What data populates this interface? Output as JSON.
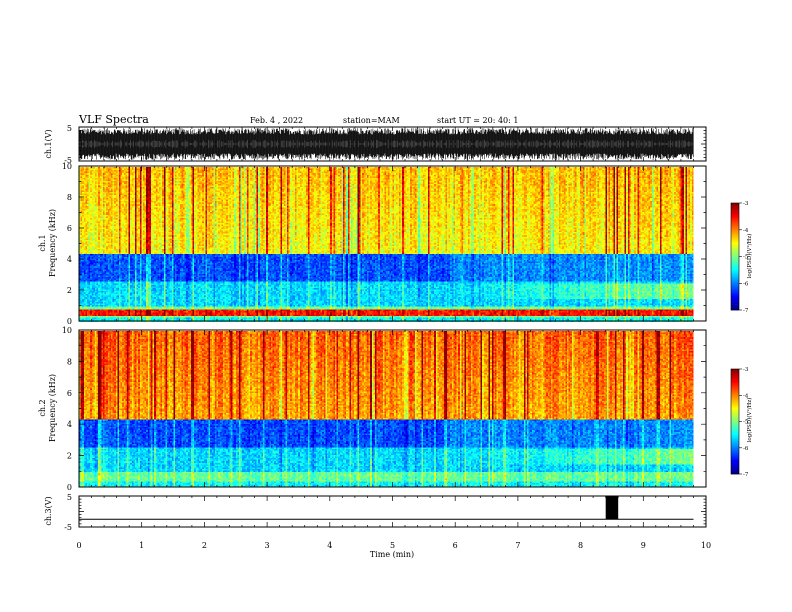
{
  "header": {
    "title": "VLF Spectra",
    "date": "Feb. 4 , 2022",
    "station": "station=MAM",
    "start": "start UT =  20: 40: 1"
  },
  "chart_data": [
    {
      "type": "line",
      "panel": "ch1-waveform",
      "ylabel": "ch.1(V)",
      "ylim": [
        -5,
        5
      ],
      "yticks": [
        "5",
        "-5"
      ],
      "xlim": [
        0,
        10
      ],
      "data_extent_min": 9.8,
      "description_values": "dense oscillating waveform filling roughly -4.5 to 4.5 V"
    },
    {
      "type": "heatmap",
      "panel": "ch1-spectrogram",
      "ylabel": "ch.1\nFrequency (kHz)",
      "ylim": [
        0,
        10
      ],
      "yticks": [
        "0",
        "2",
        "4",
        "6",
        "8",
        "10"
      ],
      "xlim": [
        0,
        10
      ],
      "data_extent_min": 9.8,
      "colorbar": {
        "label": "log(PSD)(V²/Hz)",
        "range": [
          -7,
          -3
        ],
        "ticks": [
          "-3",
          "-4",
          "-5",
          "-6",
          "-7"
        ]
      }
    },
    {
      "type": "heatmap",
      "panel": "ch2-spectrogram",
      "ylabel": "ch.2\nFrequency (kHz)",
      "ylim": [
        0,
        10
      ],
      "yticks": [
        "0",
        "2",
        "4",
        "6",
        "8",
        "10"
      ],
      "xlim": [
        0,
        10
      ],
      "data_extent_min": 9.8,
      "colorbar": {
        "label": "log(PSD)(V²/Hz)",
        "range": [
          -7,
          -3
        ],
        "ticks": [
          "-3",
          "-4",
          "-5",
          "-6",
          "-7"
        ]
      }
    },
    {
      "type": "line",
      "panel": "ch3-trace",
      "ylabel": "ch.3(V)",
      "ylim": [
        -5,
        5
      ],
      "yticks": [
        "5",
        "-5"
      ],
      "xlim": [
        0,
        10
      ],
      "xlabel": "Time (min)",
      "xticks": [
        "0",
        "1",
        "2",
        "3",
        "4",
        "5",
        "6",
        "7",
        "8",
        "9",
        "10"
      ],
      "baseline_value": -2.5,
      "pulse": {
        "x_start": 8.4,
        "x_end": 8.6,
        "y_low": -2.5,
        "y_high": 5
      }
    }
  ]
}
